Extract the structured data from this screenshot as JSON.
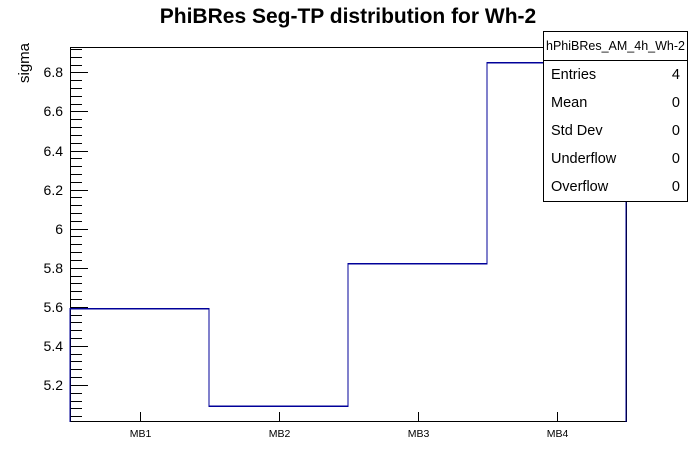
{
  "title": "PhiBRes Seg-TP distribution for Wh-2",
  "colors": {
    "histogram_line": "#000099",
    "axis": "#000000",
    "background": "#ffffff",
    "stats_border": "#000000"
  },
  "stats_box": {
    "header": "hPhiBRes_AM_4h_Wh-2",
    "rows": [
      {
        "label": "Entries",
        "value": "4"
      },
      {
        "label": "Mean",
        "value": "0"
      },
      {
        "label": "Std Dev",
        "value": "0"
      },
      {
        "label": "Underflow",
        "value": "0"
      },
      {
        "label": "Overflow",
        "value": "0"
      }
    ]
  },
  "chart_data": {
    "type": "bar",
    "style": "step-histogram-outline",
    "categories": [
      "MB1",
      "MB2",
      "MB3",
      "MB4"
    ],
    "values": [
      5.59,
      5.09,
      5.82,
      6.85
    ],
    "title": "PhiBRes Seg-TP distribution for Wh-2",
    "xlabel": "",
    "ylabel": "sigma",
    "ylim": [
      5.01,
      6.93
    ],
    "yticks": [
      5.2,
      5.4,
      5.6,
      5.8,
      6.0,
      6.2,
      6.4,
      6.6,
      6.8
    ],
    "ytick_labels": [
      "5.2",
      "5.4",
      "5.6",
      "5.8",
      "6",
      "6.2",
      "6.4",
      "6.6",
      "6.8"
    ],
    "ytick_minor_step": 0.04,
    "grid": false,
    "legend": false
  }
}
